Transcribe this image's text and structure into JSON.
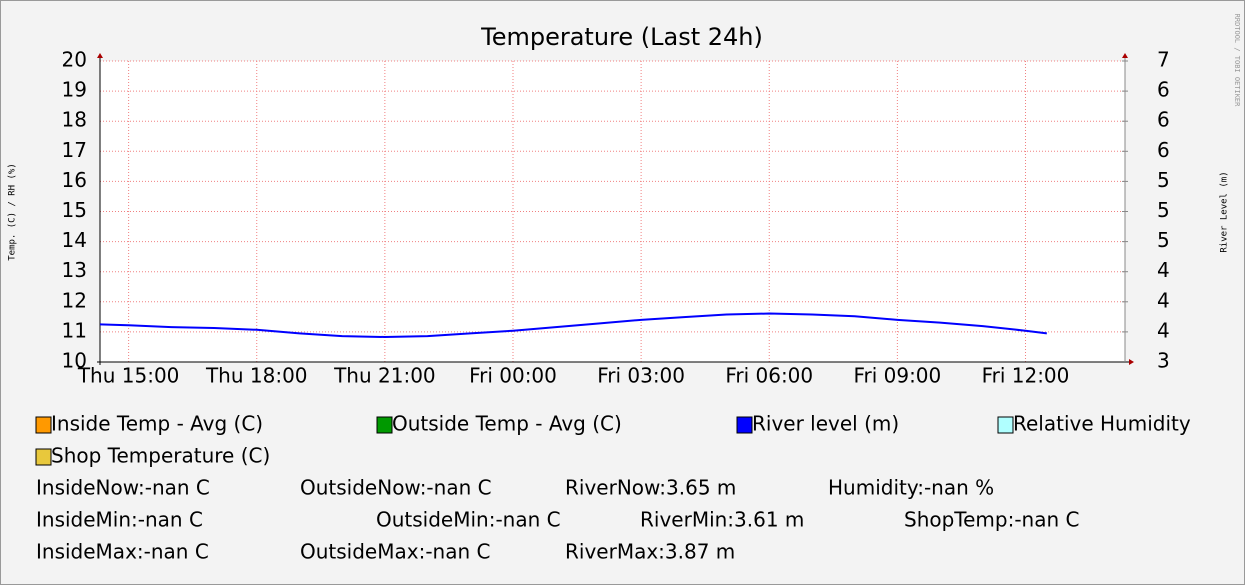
{
  "chart_data": {
    "type": "line",
    "title": "Temperature (Last 24h)",
    "y_label": "Temp. (C) / RH (%)",
    "y2_label": "River Level (m)",
    "watermark": "RRDTOOL / TOBI OETIKER",
    "grid": true,
    "xlim": [
      14.33,
      38.33
    ],
    "xticks": [
      {
        "value": 15,
        "label": "Thu 15:00"
      },
      {
        "value": 18,
        "label": "Thu 18:00"
      },
      {
        "value": 21,
        "label": "Thu 21:00"
      },
      {
        "value": 24,
        "label": "Fri 00:00"
      },
      {
        "value": 27,
        "label": "Fri 03:00"
      },
      {
        "value": 30,
        "label": "Fri 06:00"
      },
      {
        "value": 33,
        "label": "Fri 09:00"
      },
      {
        "value": 36,
        "label": "Fri 12:00"
      }
    ],
    "ylim": [
      10,
      20
    ],
    "yticks": [
      10,
      11,
      12,
      13,
      14,
      15,
      16,
      17,
      18,
      19,
      20
    ],
    "y2lim": [
      3.3333,
      6.6667
    ],
    "y2ticks": [
      {
        "value": 3.3333,
        "label": "3"
      },
      {
        "value": 3.6667,
        "label": "4"
      },
      {
        "value": 4,
        "label": "4"
      },
      {
        "value": 4.3333,
        "label": "4"
      },
      {
        "value": 4.6667,
        "label": "5"
      },
      {
        "value": 5,
        "label": "5"
      },
      {
        "value": 5.3333,
        "label": "5"
      },
      {
        "value": 5.6667,
        "label": "6"
      },
      {
        "value": 6,
        "label": "6"
      },
      {
        "value": 6.3333,
        "label": "6"
      },
      {
        "value": 6.6667,
        "label": "7"
      }
    ],
    "x": [
      14.33,
      15,
      16,
      17,
      18,
      19,
      20,
      21,
      22,
      23,
      24,
      25,
      26,
      27,
      28,
      29,
      30,
      31,
      32,
      33,
      34,
      35,
      36,
      36.5
    ],
    "series": [
      {
        "name": "River level (m)",
        "color": "#0000ff",
        "axis": "y2",
        "values": [
          3.75,
          3.74,
          3.72,
          3.71,
          3.69,
          3.65,
          3.62,
          3.61,
          3.62,
          3.65,
          3.68,
          3.72,
          3.76,
          3.8,
          3.83,
          3.86,
          3.87,
          3.86,
          3.84,
          3.8,
          3.77,
          3.73,
          3.68,
          3.65
        ]
      }
    ],
    "legend": [
      {
        "name": "Inside Temp - Avg (C)",
        "color": "#ff9900"
      },
      {
        "name": "Outside Temp - Avg (C)",
        "color": "#009900"
      },
      {
        "name": "River level (m)",
        "color": "#0000ff"
      },
      {
        "name": "Relative Humidity",
        "color": "#b0ffff"
      },
      {
        "name": "Shop Temperature (C)",
        "color": "#e8c83c"
      }
    ],
    "stats": [
      [
        "InsideNow:-nan C",
        "OutsideNow:-nan C",
        "RiverNow:3.65 m",
        "Humidity:-nan %"
      ],
      [
        "InsideMin:-nan C",
        "OutsideMin:-nan C",
        "RiverMin:3.61 m",
        "ShopTemp:-nan C"
      ],
      [
        "InsideMax:-nan C",
        "OutsideMax:-nan C",
        "RiverMax:3.87 m"
      ]
    ]
  }
}
